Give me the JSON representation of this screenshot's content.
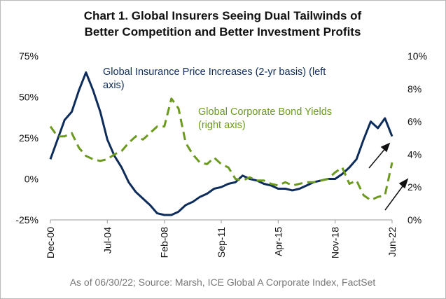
{
  "chart_data": {
    "type": "line",
    "title": [
      "Chart 1. Global Insurers Seeing Dual Tailwinds of",
      "Better Competition and Better Investment Profits"
    ],
    "note": "As of 06/30/22; Source: Marsh, ICE Global A Corporate Index, FactSet",
    "categories": [
      "Dec-00",
      null,
      null,
      null,
      null,
      null,
      null,
      null,
      "Jul-04",
      null,
      null,
      null,
      null,
      null,
      null,
      null,
      "Feb-08",
      null,
      null,
      null,
      null,
      null,
      null,
      null,
      "Sep-11",
      null,
      null,
      null,
      null,
      null,
      null,
      null,
      "Apr-15",
      null,
      null,
      null,
      null,
      null,
      null,
      null,
      "Nov-18",
      null,
      null,
      null,
      null,
      null,
      null,
      null,
      "Jun-22"
    ],
    "series": [
      {
        "name": "Global Insurance Price Increases (2-yr basis) (left axis)",
        "color": "#0d2c5a",
        "dash": false,
        "axis": "y",
        "values": [
          12,
          24,
          36,
          41,
          54,
          65,
          54,
          41,
          24,
          14,
          7,
          -2,
          -8,
          -12,
          -16,
          -21,
          -22,
          -22,
          -20,
          -16,
          -14,
          -11,
          -9,
          -6,
          -5,
          -3,
          -2,
          2,
          0,
          -1,
          -3,
          -4,
          -6,
          -6,
          -7,
          -6,
          -4,
          -2,
          -1,
          0,
          0,
          3,
          7,
          12,
          24,
          35,
          31,
          37,
          26
        ]
      },
      {
        "name": "Global Corporate Bond Yields (right axis)",
        "color": "#6b9a1f",
        "dash": true,
        "axis": "y2",
        "values": [
          5.7,
          5.1,
          5.1,
          5.3,
          4.4,
          3.9,
          3.7,
          3.6,
          3.7,
          4.0,
          4.2,
          4.7,
          5.1,
          4.9,
          5.3,
          5.7,
          5.7,
          7.4,
          6.8,
          4.7,
          4.0,
          3.5,
          3.4,
          3.8,
          3.4,
          3.2,
          2.5,
          2.4,
          2.6,
          2.4,
          2.4,
          2.2,
          2.1,
          2.3,
          2.1,
          2.2,
          2.3,
          2.3,
          2.4,
          2.5,
          2.9,
          3.2,
          2.2,
          2.4,
          1.5,
          1.2,
          1.4,
          1.5,
          3.5
        ]
      }
    ],
    "ylim": [
      -25,
      75
    ],
    "yticks": [
      {
        "value": -25,
        "label": "-25%"
      },
      {
        "value": 0,
        "label": "0%"
      },
      {
        "value": 25,
        "label": "25%"
      },
      {
        "value": 50,
        "label": "50%"
      },
      {
        "value": 75,
        "label": "75%"
      }
    ],
    "y2lim": [
      0,
      10
    ],
    "y2ticks": [
      {
        "value": 0,
        "label": "0%"
      },
      {
        "value": 2,
        "label": "2%"
      },
      {
        "value": 4,
        "label": "4%"
      },
      {
        "value": 6,
        "label": "6%"
      },
      {
        "value": 8,
        "label": "8%"
      },
      {
        "value": 10,
        "label": "10%"
      }
    ]
  }
}
